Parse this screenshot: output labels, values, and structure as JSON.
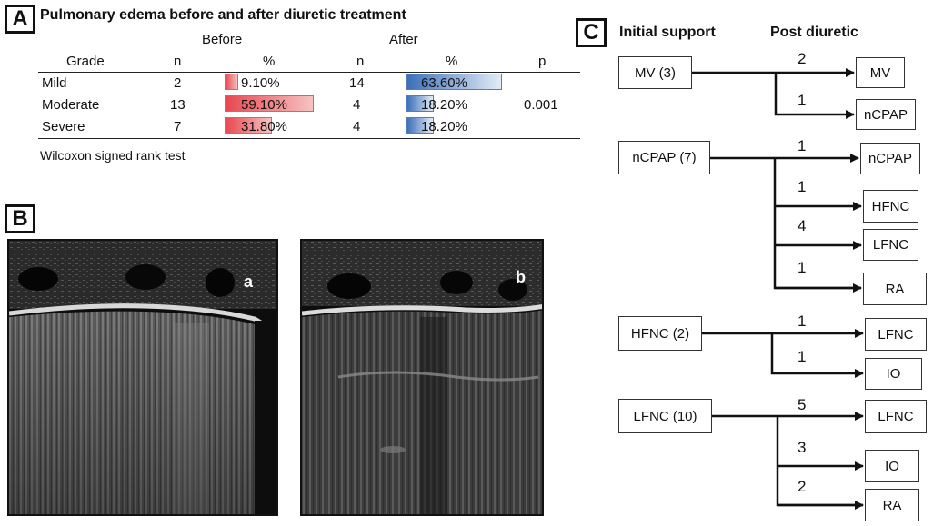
{
  "panel_a": {
    "letter": "A",
    "title": "Pulmonary edema before and after diuretic treatment",
    "group_before": "Before",
    "group_after": "After",
    "headers": {
      "grade": "Grade",
      "n_before": "n",
      "pct_before": "%",
      "n_after": "n",
      "pct_after": "%",
      "p": "p"
    },
    "rows": [
      {
        "grade": "Mild",
        "n_before": "2",
        "pct_before": "9.10%",
        "before_value": 9.1,
        "n_after": "14",
        "pct_after": "63.60%",
        "after_value": 63.6
      },
      {
        "grade": "Moderate",
        "n_before": "13",
        "pct_before": "59.10%",
        "before_value": 59.1,
        "n_after": "4",
        "pct_after": "18.20%",
        "after_value": 18.2
      },
      {
        "grade": "Severe",
        "n_before": "7",
        "pct_before": "31.80%",
        "before_value": 31.8,
        "n_after": "4",
        "pct_after": "18.20%",
        "after_value": 18.2
      }
    ],
    "p_value": "0.001",
    "footnote": "Wilcoxon signed rank  test",
    "colors": {
      "before": "#e8474f",
      "after": "#3d6fb8"
    }
  },
  "panel_b": {
    "letter": "B",
    "image_a_label": "a",
    "image_b_label": "b"
  },
  "panel_c": {
    "letter": "C",
    "col_initial": "Initial support",
    "col_post": "Post diuretic",
    "groups": [
      {
        "source": "MV (3)",
        "targets": [
          {
            "count": "2",
            "label": "MV"
          },
          {
            "count": "1",
            "label": "nCPAP"
          }
        ]
      },
      {
        "source": "nCPAP (7)",
        "targets": [
          {
            "count": "1",
            "label": "nCPAP"
          },
          {
            "count": "1",
            "label": "HFNC"
          },
          {
            "count": "4",
            "label": "LFNC"
          },
          {
            "count": "1",
            "label": "RA"
          }
        ]
      },
      {
        "source": "HFNC (2)",
        "targets": [
          {
            "count": "1",
            "label": "LFNC"
          },
          {
            "count": "1",
            "label": "IO"
          }
        ]
      },
      {
        "source": "LFNC (10)",
        "targets": [
          {
            "count": "5",
            "label": "LFNC"
          },
          {
            "count": "3",
            "label": "IO"
          },
          {
            "count": "2",
            "label": "RA"
          }
        ]
      }
    ]
  }
}
